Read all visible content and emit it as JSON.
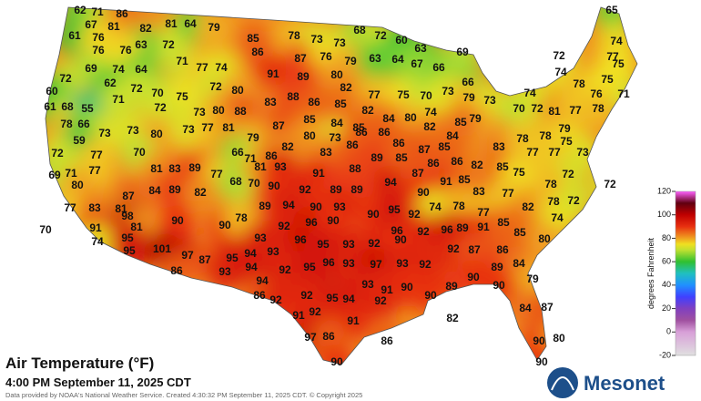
{
  "title": "Air Temperature (°F)",
  "subtitle": "4:00 PM September 11, 2025 CDT",
  "credit": "Data provided by NOAA's National Weather Service. Created 4:30:32 PM September 11, 2025 CDT. © Copyright 2025",
  "logo": "Mesonet",
  "colorbar": {
    "label": "degrees Fahrenheit",
    "ticks": [
      -20,
      0,
      20,
      40,
      60,
      80,
      100,
      120
    ],
    "stops": [
      {
        "value": -20,
        "color": "#e0e0e0"
      },
      {
        "value": 0,
        "color": "#d8a0d8"
      },
      {
        "value": 10,
        "color": "#a050a0"
      },
      {
        "value": 20,
        "color": "#8040c0"
      },
      {
        "value": 30,
        "color": "#4040ff"
      },
      {
        "value": 40,
        "color": "#2090ff"
      },
      {
        "value": 50,
        "color": "#20c0c0"
      },
      {
        "value": 60,
        "color": "#30c030"
      },
      {
        "value": 70,
        "color": "#c0e030"
      },
      {
        "value": 75,
        "color": "#f0e020"
      },
      {
        "value": 80,
        "color": "#f0a020"
      },
      {
        "value": 90,
        "color": "#e83010"
      },
      {
        "value": 100,
        "color": "#c00000"
      },
      {
        "value": 110,
        "color": "#600010"
      },
      {
        "value": 120,
        "color": "#ff60ff"
      }
    ]
  },
  "readings": [
    62,
    71,
    86,
    67,
    81,
    82,
    81,
    64,
    79,
    61,
    76,
    72,
    63,
    85,
    78,
    73,
    73,
    68,
    72,
    60,
    63,
    65,
    74,
    76,
    76,
    86,
    87,
    76,
    79,
    63,
    64,
    67,
    66,
    69,
    72,
    77,
    72,
    69,
    74,
    64,
    71,
    77,
    74,
    91,
    89,
    80,
    66,
    74,
    75,
    60,
    62,
    72,
    70,
    75,
    72,
    80,
    82,
    77,
    75,
    70,
    73,
    79,
    73,
    74,
    78,
    76,
    71,
    75,
    61,
    68,
    55,
    71,
    72,
    73,
    80,
    88,
    83,
    88,
    86,
    85,
    82,
    84,
    80,
    74,
    79,
    70,
    72,
    81,
    77,
    78,
    78,
    66,
    73,
    73,
    80,
    73,
    77,
    81,
    87,
    85,
    84,
    85,
    82,
    85,
    79,
    59,
    79,
    80,
    73,
    86,
    86,
    86,
    84,
    83,
    78,
    78,
    75,
    73,
    72,
    77,
    70,
    66,
    71,
    86,
    82,
    83,
    86,
    89,
    85,
    87,
    85,
    86,
    86,
    82,
    85,
    75,
    77,
    77,
    72,
    69,
    71,
    77,
    80,
    81,
    83,
    89,
    77,
    68,
    70,
    81,
    93,
    91,
    88,
    94,
    91,
    85,
    87,
    87,
    84,
    89,
    82,
    90,
    92,
    89,
    89,
    90,
    83,
    77,
    78,
    72,
    77,
    83,
    81,
    89,
    94,
    90,
    93,
    90,
    95,
    92,
    74,
    78,
    77,
    82,
    78,
    72,
    74,
    98,
    81,
    90,
    90,
    78,
    92,
    96,
    90,
    96,
    89,
    91,
    85,
    85,
    80,
    70,
    91,
    74,
    95,
    93,
    96,
    95,
    93,
    92,
    90,
    92,
    96,
    92,
    87,
    86,
    95,
    101,
    97,
    87,
    95,
    94,
    93,
    96,
    93,
    97,
    93,
    92,
    89,
    84,
    86,
    93,
    94,
    92,
    95,
    90,
    79,
    94,
    93,
    90,
    89,
    90,
    86,
    92,
    92,
    95,
    94,
    91,
    92,
    90,
    84,
    87,
    91,
    92,
    82,
    91,
    97,
    86,
    86,
    90,
    80,
    90,
    90
  ]
}
